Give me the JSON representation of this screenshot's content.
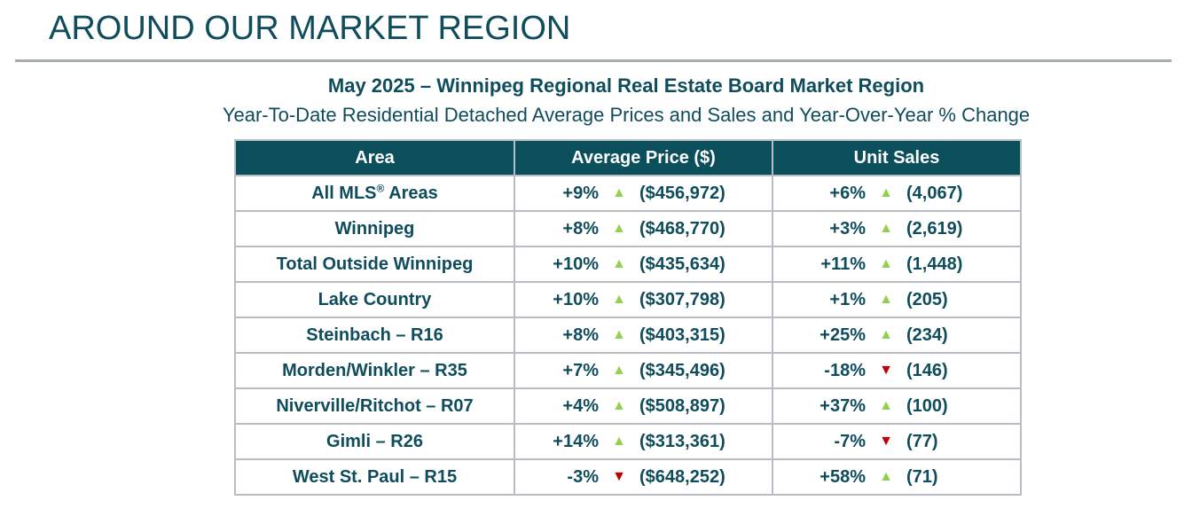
{
  "header": {
    "title": "AROUND OUR MARKET REGION"
  },
  "report": {
    "title": "May 2025 – Winnipeg Regional Real Estate Board Market Region",
    "subtitle": "Year-To-Date Residential Detached Average Prices and Sales and Year-Over-Year % Change"
  },
  "table": {
    "columns": [
      "Area",
      "Average Price ($)",
      "Unit Sales"
    ],
    "colors": {
      "up": "#92d050",
      "down": "#c00000",
      "header_bg": "#0b4f5c"
    },
    "rows": [
      {
        "area": "All MLS",
        "area_sup": "®",
        "area_suffix": " Areas",
        "price_pct": "+9%",
        "price_dir": "up",
        "price_val": "($456,972)",
        "sales_pct": "+6%",
        "sales_dir": "up",
        "sales_val": "(4,067)"
      },
      {
        "area": "Winnipeg",
        "price_pct": "+8%",
        "price_dir": "up",
        "price_val": "($468,770)",
        "sales_pct": "+3%",
        "sales_dir": "up",
        "sales_val": "(2,619)"
      },
      {
        "area": "Total Outside Winnipeg",
        "price_pct": "+10%",
        "price_dir": "up",
        "price_val": "($435,634)",
        "sales_pct": "+11%",
        "sales_dir": "up",
        "sales_val": "(1,448)"
      },
      {
        "area": "Lake Country",
        "price_pct": "+10%",
        "price_dir": "up",
        "price_val": "($307,798)",
        "sales_pct": "+1%",
        "sales_dir": "up",
        "sales_val": "(205)"
      },
      {
        "area": "Steinbach – R16",
        "price_pct": "+8%",
        "price_dir": "up",
        "price_val": "($403,315)",
        "sales_pct": "+25%",
        "sales_dir": "up",
        "sales_val": "(234)"
      },
      {
        "area": "Morden/Winkler – R35",
        "price_pct": "+7%",
        "price_dir": "up",
        "price_val": "($345,496)",
        "sales_pct": "-18%",
        "sales_dir": "down",
        "sales_val": "(146)"
      },
      {
        "area": "Niverville/Ritchot – R07",
        "price_pct": "+4%",
        "price_dir": "up",
        "price_val": "($508,897)",
        "sales_pct": "+37%",
        "sales_dir": "up",
        "sales_val": "(100)"
      },
      {
        "area": "Gimli – R26",
        "price_pct": "+14%",
        "price_dir": "up",
        "price_val": "($313,361)",
        "sales_pct": "-7%",
        "sales_dir": "down",
        "sales_val": "(77)"
      },
      {
        "area": "West St. Paul – R15",
        "price_pct": "-3%",
        "price_dir": "down",
        "price_val": "($648,252)",
        "sales_pct": "+58%",
        "sales_dir": "up",
        "sales_val": "(71)"
      }
    ]
  }
}
